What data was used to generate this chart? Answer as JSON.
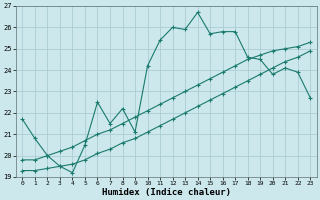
{
  "xlabel": "Humidex (Indice chaleur)",
  "bg_color": "#cce8ec",
  "grid_color": "#aacdd4",
  "line_color": "#1a7a6e",
  "xlim": [
    -0.5,
    23.5
  ],
  "ylim": [
    19,
    27
  ],
  "yticks": [
    19,
    20,
    21,
    22,
    23,
    24,
    25,
    26,
    27
  ],
  "xticks": [
    0,
    1,
    2,
    3,
    4,
    5,
    6,
    7,
    8,
    9,
    10,
    11,
    12,
    13,
    14,
    15,
    16,
    17,
    18,
    19,
    20,
    21,
    22,
    23
  ],
  "line1_x": [
    0,
    1,
    2,
    3,
    4,
    5,
    6,
    7,
    8,
    9,
    10,
    11,
    12,
    13,
    14,
    15,
    16,
    17,
    18,
    19,
    20,
    21,
    22,
    23
  ],
  "line1_y": [
    21.7,
    20.8,
    20.0,
    19.5,
    19.2,
    20.5,
    22.5,
    21.5,
    22.2,
    21.1,
    24.2,
    25.4,
    26.0,
    25.9,
    26.7,
    25.7,
    25.8,
    25.8,
    24.6,
    24.5,
    23.8,
    24.1,
    23.9,
    22.7
  ],
  "line3_x": [
    0,
    1,
    2,
    3,
    4,
    5,
    6,
    7,
    8,
    9,
    10,
    11,
    12,
    13,
    14,
    15,
    16,
    17,
    18,
    19,
    20,
    21,
    22,
    23
  ],
  "line3_y": [
    19.8,
    19.8,
    20.0,
    20.2,
    20.4,
    20.7,
    21.0,
    21.2,
    21.5,
    21.8,
    22.1,
    22.4,
    22.7,
    23.0,
    23.3,
    23.6,
    23.9,
    24.2,
    24.5,
    24.7,
    24.9,
    25.0,
    25.1,
    25.3
  ],
  "line4_x": [
    0,
    1,
    2,
    3,
    4,
    5,
    6,
    7,
    8,
    9,
    10,
    11,
    12,
    13,
    14,
    15,
    16,
    17,
    18,
    19,
    20,
    21,
    22,
    23
  ],
  "line4_y": [
    19.3,
    19.3,
    19.4,
    19.5,
    19.6,
    19.8,
    20.1,
    20.3,
    20.6,
    20.8,
    21.1,
    21.4,
    21.7,
    22.0,
    22.3,
    22.6,
    22.9,
    23.2,
    23.5,
    23.8,
    24.1,
    24.4,
    24.6,
    24.9
  ]
}
